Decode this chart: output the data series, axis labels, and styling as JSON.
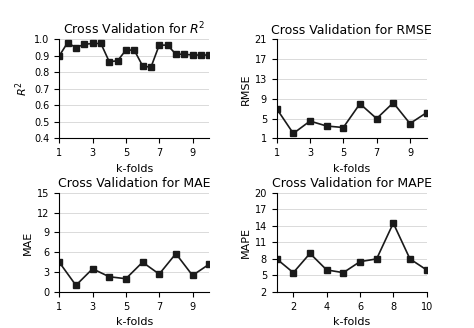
{
  "r2": {
    "title": "Cross Validation for $R^2$",
    "ylabel": "$R^2$",
    "xlabel": "k-folds",
    "x": [
      1,
      1.5,
      2,
      2.5,
      3,
      3.5,
      4,
      4.5,
      5,
      5.5,
      6,
      6.5,
      7,
      7.5,
      8,
      8.5,
      9,
      9.5,
      10
    ],
    "y": [
      0.9,
      0.98,
      0.95,
      0.97,
      0.975,
      0.975,
      0.865,
      0.87,
      0.935,
      0.935,
      0.84,
      0.83,
      0.965,
      0.965,
      0.91,
      0.91,
      0.905,
      0.905,
      0.905
    ],
    "xlim": [
      1,
      10
    ],
    "ylim": [
      0.4,
      1.0
    ],
    "yticks": [
      0.4,
      0.5,
      0.6,
      0.7,
      0.8,
      0.9,
      1.0
    ],
    "xticks": [
      1,
      3,
      5,
      7,
      9
    ]
  },
  "rmse": {
    "title": "Cross Validation for RMSE",
    "ylabel": "RMSE",
    "xlabel": "k-folds",
    "x": [
      1,
      2,
      3,
      4,
      5,
      6,
      7,
      8,
      9,
      10
    ],
    "y": [
      7.0,
      2.0,
      4.5,
      3.5,
      3.2,
      8.0,
      5.0,
      8.2,
      4.0,
      6.2
    ],
    "xlim": [
      1,
      10
    ],
    "ylim": [
      1,
      21
    ],
    "yticks": [
      1,
      5,
      9,
      13,
      17,
      21
    ],
    "xticks": [
      1,
      3,
      5,
      7,
      9
    ]
  },
  "mae": {
    "title": "Cross Validation for MAE",
    "ylabel": "MAE",
    "xlabel": "k-folds",
    "x": [
      1,
      2,
      3,
      4,
      5,
      6,
      7,
      8,
      9,
      10
    ],
    "y": [
      4.5,
      1.0,
      3.5,
      2.3,
      2.0,
      4.5,
      2.7,
      5.8,
      2.5,
      4.2
    ],
    "xlim": [
      1,
      10
    ],
    "ylim": [
      0,
      15
    ],
    "yticks": [
      0,
      3,
      6,
      9,
      12,
      15
    ],
    "xticks": [
      1,
      3,
      5,
      7,
      9
    ]
  },
  "mape": {
    "title": "Cross Validation for MAPE",
    "ylabel": "MAPE",
    "xlabel": "k-folds",
    "x": [
      1,
      2,
      3,
      4,
      5,
      6,
      7,
      8,
      9,
      10
    ],
    "y": [
      8.0,
      5.5,
      9.0,
      6.0,
      5.5,
      7.5,
      8.0,
      14.5,
      8.0,
      6.0
    ],
    "xlim": [
      1,
      10
    ],
    "ylim": [
      2,
      20
    ],
    "yticks": [
      2,
      5,
      8,
      11,
      14,
      17,
      20
    ],
    "xticks": [
      2,
      4,
      6,
      8,
      10
    ]
  },
  "line_color": "#1a1a1a",
  "marker": "s",
  "markersize": 4,
  "linewidth": 1.2,
  "bg_color": "#ffffff",
  "title_fontsize": 9,
  "label_fontsize": 8,
  "tick_fontsize": 7
}
